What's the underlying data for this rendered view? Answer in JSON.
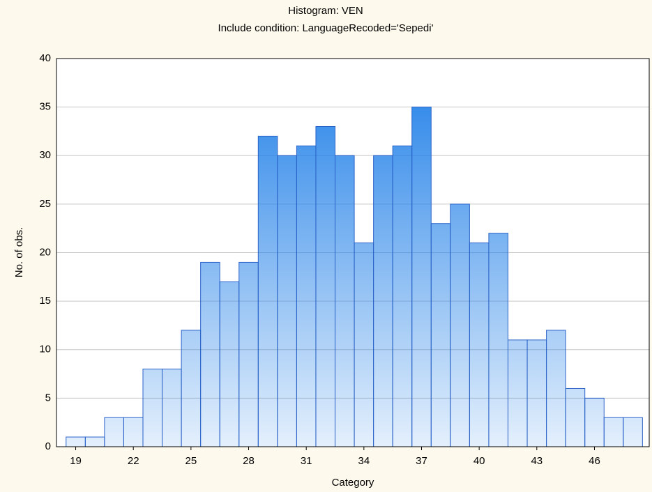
{
  "chart_data": {
    "type": "histogram",
    "title": "Histogram: VEN",
    "subtitle": "Include condition: LanguageRecoded='Sepedi'",
    "x_label": "Category",
    "y_label": "No. of obs.",
    "bins": [
      18.5,
      19.5,
      20.5,
      21.5,
      22.5,
      23.5,
      24.5,
      25.5,
      26.5,
      27.5,
      28.5,
      29.5,
      30.5,
      31.5,
      32.5,
      33.5,
      34.5,
      35.5,
      36.5,
      37.5,
      38.5,
      39.5,
      40.5,
      41.5,
      42.5,
      43.5,
      44.5,
      45.5,
      46.5,
      47.5,
      48.5
    ],
    "values": [
      1,
      1,
      3,
      3,
      8,
      8,
      12,
      19,
      17,
      19,
      32,
      30,
      31,
      33,
      30,
      21,
      30,
      31,
      35,
      23,
      25,
      21,
      22,
      11,
      11,
      12,
      6,
      5,
      3,
      3
    ],
    "color": "#1f7fe8",
    "edge_color": "#2a62c8",
    "xlim": [
      18,
      48.85
    ],
    "xticks": [
      19,
      22,
      25,
      28,
      31,
      34,
      37,
      40,
      43,
      46
    ],
    "ylim": [
      0,
      40
    ],
    "yticks": [
      0,
      5,
      10,
      15,
      20,
      25,
      30,
      35,
      40
    ],
    "grid": true
  }
}
